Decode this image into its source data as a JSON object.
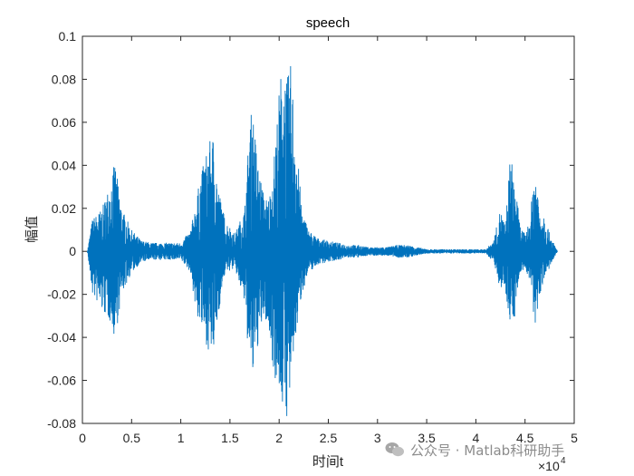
{
  "chart_data": {
    "type": "line",
    "title": "speech",
    "xlabel": "时间t",
    "ylabel": "幅值",
    "xlim": [
      0,
      50000
    ],
    "ylim": [
      -0.08,
      0.1
    ],
    "x_tick_labels": [
      "0",
      "0.5",
      "1",
      "1.5",
      "2",
      "2.5",
      "3",
      "3.5",
      "4",
      "4.5",
      "5"
    ],
    "x_tick_values": [
      0,
      5000,
      10000,
      15000,
      20000,
      25000,
      30000,
      35000,
      40000,
      45000,
      50000
    ],
    "x_exponent": {
      "base": "×10",
      "power": "4"
    },
    "y_tick_labels": [
      "-0.08",
      "-0.06",
      "-0.04",
      "-0.02",
      "0",
      "0.02",
      "0.04",
      "0.06",
      "0.08",
      "0.1"
    ],
    "y_tick_values": [
      -0.08,
      -0.06,
      -0.04,
      -0.02,
      0,
      0.02,
      0.04,
      0.06,
      0.08,
      0.1
    ],
    "grid": false,
    "series_color": "#0072BD",
    "envelope": {
      "x": [
        500,
        1000,
        2000,
        3000,
        3300,
        4000,
        5000,
        6000,
        7000,
        8000,
        9000,
        10000,
        11000,
        11500,
        12000,
        12800,
        13300,
        13800,
        14500,
        15500,
        16500,
        17000,
        17300,
        17800,
        18500,
        19000,
        19500,
        20000,
        20300,
        20800,
        21200,
        21700,
        22300,
        23000,
        24000,
        25000,
        26000,
        27000,
        28000,
        29000,
        30000,
        31000,
        32000,
        33000,
        34000,
        35000,
        36000,
        37000,
        38000,
        39000,
        40000,
        41000,
        41800,
        42500,
        43000,
        43500,
        44000,
        44500,
        45000,
        45500,
        46000,
        46500,
        47000,
        47500,
        48000,
        48300
      ],
      "upper": [
        0.0,
        0.015,
        0.02,
        0.035,
        0.042,
        0.02,
        0.01,
        0.005,
        0.004,
        0.004,
        0.004,
        0.004,
        0.01,
        0.022,
        0.035,
        0.05,
        0.054,
        0.03,
        0.015,
        0.008,
        0.02,
        0.06,
        0.068,
        0.042,
        0.025,
        0.025,
        0.045,
        0.075,
        0.089,
        0.08,
        0.088,
        0.055,
        0.02,
        0.01,
        0.006,
        0.005,
        0.004,
        0.003,
        0.003,
        0.002,
        0.002,
        0.002,
        0.003,
        0.003,
        0.002,
        0.001,
        0.001,
        0.001,
        0.001,
        0.001,
        0.001,
        0.001,
        0.005,
        0.02,
        0.012,
        0.046,
        0.032,
        0.012,
        0.008,
        0.015,
        0.042,
        0.02,
        0.018,
        0.008,
        0.003,
        0.0
      ],
      "lower": [
        0.0,
        -0.02,
        -0.028,
        -0.034,
        -0.042,
        -0.02,
        -0.01,
        -0.005,
        -0.004,
        -0.004,
        -0.004,
        -0.004,
        -0.01,
        -0.028,
        -0.035,
        -0.046,
        -0.05,
        -0.03,
        -0.01,
        -0.008,
        -0.025,
        -0.055,
        -0.06,
        -0.045,
        -0.03,
        -0.04,
        -0.058,
        -0.065,
        -0.072,
        -0.078,
        -0.065,
        -0.04,
        -0.02,
        -0.01,
        -0.006,
        -0.005,
        -0.004,
        -0.003,
        -0.003,
        -0.002,
        -0.002,
        -0.002,
        -0.003,
        -0.003,
        -0.002,
        -0.001,
        -0.001,
        -0.001,
        -0.001,
        -0.001,
        -0.001,
        -0.001,
        -0.005,
        -0.018,
        -0.018,
        -0.034,
        -0.03,
        -0.01,
        -0.008,
        -0.015,
        -0.036,
        -0.02,
        -0.012,
        -0.008,
        -0.003,
        0.0
      ]
    }
  },
  "watermark": {
    "text": "公众号 · Matlab科研助手",
    "icon": "wechat-icon"
  }
}
